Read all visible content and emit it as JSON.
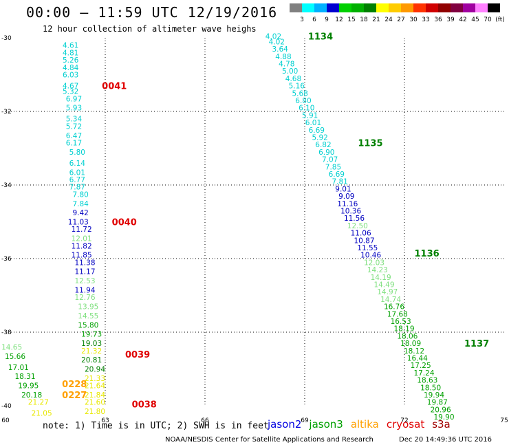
{
  "title": "00:00 – 11:59 UTC 12/19/2016",
  "subtitle": "12 hour collection of altimeter wave heighs",
  "legend": {
    "labels": [
      "3",
      "6",
      "9",
      "12",
      "15",
      "18",
      "21",
      "24",
      "27",
      "30",
      "33",
      "36",
      "39",
      "42",
      "45",
      "70",
      "(ft)"
    ],
    "colors": [
      "#808080",
      "#00ffff",
      "#00b0ff",
      "#0000d0",
      "#00d000",
      "#00b000",
      "#008000",
      "#ffff00",
      "#ffcc00",
      "#ff9900",
      "#ff3300",
      "#d00000",
      "#900000",
      "#800040",
      "#a000a0",
      "#ff80ff",
      "#000000"
    ]
  },
  "colors": {
    "teal": "#00d0d0",
    "navy": "#0000c0",
    "light_green": "#80e080",
    "green": "#00a000",
    "dark_green": "#008000",
    "yellow": "#e8e800",
    "orange": "#ffa000",
    "red": "#e00000"
  },
  "chart_data": {
    "type": "scatter",
    "title": "00:00 – 11:59 UTC 12/19/2016",
    "subtitle": "12 hour collection of altimeter wave heighs",
    "x_ticks": [
      "60",
      "63",
      "66",
      "69",
      "72",
      "75"
    ],
    "y_ticks": [
      "-30",
      "-32",
      "-34",
      "-36",
      "-38",
      "-40"
    ],
    "xlim": [
      60,
      75
    ],
    "ylim": [
      -40,
      -30
    ],
    "grid": true,
    "tracks": [
      {
        "label": "0041",
        "x": 62.9,
        "y": -31.3,
        "color": "#e00000"
      },
      {
        "label": "0040",
        "x": 63.2,
        "y": -35.0,
        "color": "#e00000"
      },
      {
        "label": "0039",
        "x": 63.6,
        "y": -38.6,
        "color": "#e00000"
      },
      {
        "label": "0038",
        "x": 63.8,
        "y": -39.95,
        "color": "#e00000"
      },
      {
        "label": "0228",
        "x": 61.7,
        "y": -39.4,
        "color": "#ffa000"
      },
      {
        "label": "0227",
        "x": 61.7,
        "y": -39.7,
        "color": "#ffa000"
      },
      {
        "label": "1134",
        "x": 69.1,
        "y": -29.95,
        "color": "#008000"
      },
      {
        "label": "1135",
        "x": 70.6,
        "y": -32.85,
        "color": "#008000"
      },
      {
        "label": "1136",
        "x": 72.3,
        "y": -35.85,
        "color": "#008000"
      },
      {
        "label": "1137",
        "x": 73.8,
        "y": -38.3,
        "color": "#008000"
      }
    ],
    "series": [
      {
        "name": "west-pass",
        "points": [
          {
            "v": "4.61",
            "x": 62.2,
            "y": -30.2,
            "c": "teal"
          },
          {
            "v": "4.81",
            "x": 62.2,
            "y": -30.4,
            "c": "teal"
          },
          {
            "v": "5.26",
            "x": 62.2,
            "y": -30.6,
            "c": "teal"
          },
          {
            "v": "4.84",
            "x": 62.2,
            "y": -30.8,
            "c": "teal"
          },
          {
            "v": "6.03",
            "x": 62.2,
            "y": -31.0,
            "c": "teal"
          },
          {
            "v": "4.67",
            "x": 62.2,
            "y": -31.3,
            "c": "teal"
          },
          {
            "v": "5.32",
            "x": 62.2,
            "y": -31.45,
            "c": "teal"
          },
          {
            "v": "6.97",
            "x": 62.3,
            "y": -31.65,
            "c": "teal"
          },
          {
            "v": "5.93",
            "x": 62.3,
            "y": -31.9,
            "c": "teal"
          },
          {
            "v": "5.34",
            "x": 62.3,
            "y": -32.2,
            "c": "teal"
          },
          {
            "v": "5.72",
            "x": 62.3,
            "y": -32.4,
            "c": "teal"
          },
          {
            "v": "6.47",
            "x": 62.3,
            "y": -32.65,
            "c": "teal"
          },
          {
            "v": "6.17",
            "x": 62.3,
            "y": -32.85,
            "c": "teal"
          },
          {
            "v": "5.80",
            "x": 62.4,
            "y": -33.1,
            "c": "teal"
          },
          {
            "v": "6.14",
            "x": 62.4,
            "y": -33.4,
            "c": "teal"
          },
          {
            "v": "6.01",
            "x": 62.4,
            "y": -33.65,
            "c": "teal"
          },
          {
            "v": "6.77",
            "x": 62.4,
            "y": -33.85,
            "c": "teal"
          },
          {
            "v": "7.87",
            "x": 62.4,
            "y": -34.05,
            "c": "teal"
          },
          {
            "v": "7.80",
            "x": 62.5,
            "y": -34.25,
            "c": "teal"
          },
          {
            "v": "7.84",
            "x": 62.5,
            "y": -34.5,
            "c": "teal"
          },
          {
            "v": "9.42",
            "x": 62.5,
            "y": -34.75,
            "c": "navy"
          },
          {
            "v": "11.03",
            "x": 62.5,
            "y": -35.0,
            "c": "navy"
          },
          {
            "v": "11.72",
            "x": 62.6,
            "y": -35.2,
            "c": "navy"
          },
          {
            "v": "12.01",
            "x": 62.6,
            "y": -35.45,
            "c": "light_green"
          },
          {
            "v": "11.82",
            "x": 62.6,
            "y": -35.65,
            "c": "navy"
          },
          {
            "v": "11.85",
            "x": 62.6,
            "y": -35.9,
            "c": "navy"
          },
          {
            "v": "11.38",
            "x": 62.7,
            "y": -36.1,
            "c": "navy"
          },
          {
            "v": "11.17",
            "x": 62.7,
            "y": -36.35,
            "c": "navy"
          },
          {
            "v": "12.53",
            "x": 62.7,
            "y": -36.6,
            "c": "light_green"
          },
          {
            "v": "11.94",
            "x": 62.7,
            "y": -36.85,
            "c": "navy"
          },
          {
            "v": "12.76",
            "x": 62.7,
            "y": -37.05,
            "c": "light_green"
          },
          {
            "v": "13.95",
            "x": 62.8,
            "y": -37.3,
            "c": "light_green"
          },
          {
            "v": "14.55",
            "x": 62.8,
            "y": -37.55,
            "c": "light_green"
          },
          {
            "v": "15.80",
            "x": 62.8,
            "y": -37.8,
            "c": "green"
          },
          {
            "v": "19.73",
            "x": 62.9,
            "y": -38.05,
            "c": "green"
          },
          {
            "v": "19.03",
            "x": 62.9,
            "y": -38.3,
            "c": "dark_green"
          },
          {
            "v": "21.32",
            "x": 62.9,
            "y": -38.5,
            "c": "yellow"
          },
          {
            "v": "20.81",
            "x": 62.9,
            "y": -38.75,
            "c": "dark_green"
          },
          {
            "v": "20.94",
            "x": 63.0,
            "y": -39.0,
            "c": "dark_green"
          },
          {
            "v": "21.33",
            "x": 63.0,
            "y": -39.25,
            "c": "yellow"
          },
          {
            "v": "21.64",
            "x": 63.0,
            "y": -39.45,
            "c": "yellow"
          },
          {
            "v": "21.84",
            "x": 63.0,
            "y": -39.7,
            "c": "yellow"
          },
          {
            "v": "21.60",
            "x": 63.0,
            "y": -39.9,
            "c": "yellow"
          },
          {
            "v": "21.80",
            "x": 63.0,
            "y": -40.15,
            "c": "yellow"
          }
        ]
      },
      {
        "name": "southwest-pass",
        "points": [
          {
            "v": "14.65",
            "x": 60.5,
            "y": -38.4,
            "c": "light_green"
          },
          {
            "v": "15.66",
            "x": 60.6,
            "y": -38.65,
            "c": "green"
          },
          {
            "v": "17.01",
            "x": 60.7,
            "y": -38.95,
            "c": "green"
          },
          {
            "v": "18.31",
            "x": 60.9,
            "y": -39.2,
            "c": "green"
          },
          {
            "v": "19.95",
            "x": 61.0,
            "y": -39.45,
            "c": "green"
          },
          {
            "v": "20.18",
            "x": 61.1,
            "y": -39.7,
            "c": "green"
          },
          {
            "v": "21.27",
            "x": 61.3,
            "y": -39.9,
            "c": "yellow"
          },
          {
            "v": "21.05",
            "x": 61.4,
            "y": -40.2,
            "c": "yellow"
          }
        ]
      },
      {
        "name": "east-pass",
        "points": [
          {
            "v": "4.02",
            "x": 68.3,
            "y": -29.95,
            "c": "teal"
          },
          {
            "v": "4.02",
            "x": 68.4,
            "y": -30.1,
            "c": "teal"
          },
          {
            "v": "3.64",
            "x": 68.5,
            "y": -30.3,
            "c": "teal"
          },
          {
            "v": "4.88",
            "x": 68.6,
            "y": -30.5,
            "c": "teal"
          },
          {
            "v": "4.78",
            "x": 68.7,
            "y": -30.7,
            "c": "teal"
          },
          {
            "v": "5.00",
            "x": 68.8,
            "y": -30.9,
            "c": "teal"
          },
          {
            "v": "4.68",
            "x": 68.9,
            "y": -31.1,
            "c": "teal"
          },
          {
            "v": "5.16",
            "x": 69.0,
            "y": -31.3,
            "c": "teal"
          },
          {
            "v": "5.68",
            "x": 69.1,
            "y": -31.5,
            "c": "teal"
          },
          {
            "v": "6.80",
            "x": 69.2,
            "y": -31.7,
            "c": "teal"
          },
          {
            "v": "6.10",
            "x": 69.3,
            "y": -31.9,
            "c": "teal"
          },
          {
            "v": "5.91",
            "x": 69.4,
            "y": -32.1,
            "c": "teal"
          },
          {
            "v": "6.01",
            "x": 69.5,
            "y": -32.3,
            "c": "teal"
          },
          {
            "v": "6.69",
            "x": 69.6,
            "y": -32.5,
            "c": "teal"
          },
          {
            "v": "5.92",
            "x": 69.7,
            "y": -32.7,
            "c": "teal"
          },
          {
            "v": "6.82",
            "x": 69.8,
            "y": -32.9,
            "c": "teal"
          },
          {
            "v": "6.90",
            "x": 69.9,
            "y": -33.1,
            "c": "teal"
          },
          {
            "v": "7.07",
            "x": 70.0,
            "y": -33.3,
            "c": "teal"
          },
          {
            "v": "7.85",
            "x": 70.1,
            "y": -33.5,
            "c": "teal"
          },
          {
            "v": "6.69",
            "x": 70.2,
            "y": -33.7,
            "c": "teal"
          },
          {
            "v": "7.81",
            "x": 70.3,
            "y": -33.9,
            "c": "teal"
          },
          {
            "v": "9.01",
            "x": 70.4,
            "y": -34.1,
            "c": "navy"
          },
          {
            "v": "9.09",
            "x": 70.5,
            "y": -34.3,
            "c": "navy"
          },
          {
            "v": "11.16",
            "x": 70.6,
            "y": -34.5,
            "c": "navy"
          },
          {
            "v": "10.36",
            "x": 70.7,
            "y": -34.7,
            "c": "navy"
          },
          {
            "v": "11.56",
            "x": 70.8,
            "y": -34.9,
            "c": "navy"
          },
          {
            "v": "12.50",
            "x": 70.9,
            "y": -35.1,
            "c": "light_green"
          },
          {
            "v": "11.06",
            "x": 71.0,
            "y": -35.3,
            "c": "navy"
          },
          {
            "v": "10.87",
            "x": 71.1,
            "y": -35.5,
            "c": "navy"
          },
          {
            "v": "11.55",
            "x": 71.2,
            "y": -35.7,
            "c": "navy"
          },
          {
            "v": "10.46",
            "x": 71.3,
            "y": -35.9,
            "c": "navy"
          },
          {
            "v": "12.03",
            "x": 71.4,
            "y": -36.1,
            "c": "light_green"
          },
          {
            "v": "14.23",
            "x": 71.5,
            "y": -36.3,
            "c": "light_green"
          },
          {
            "v": "14.19",
            "x": 71.6,
            "y": -36.5,
            "c": "light_green"
          },
          {
            "v": "14.49",
            "x": 71.7,
            "y": -36.7,
            "c": "light_green"
          },
          {
            "v": "14.97",
            "x": 71.8,
            "y": -36.9,
            "c": "light_green"
          },
          {
            "v": "14.74",
            "x": 71.9,
            "y": -37.1,
            "c": "light_green"
          },
          {
            "v": "16.76",
            "x": 72.0,
            "y": -37.3,
            "c": "green"
          },
          {
            "v": "17.68",
            "x": 72.1,
            "y": -37.5,
            "c": "green"
          },
          {
            "v": "16.53",
            "x": 72.2,
            "y": -37.7,
            "c": "green"
          },
          {
            "v": "18.19",
            "x": 72.3,
            "y": -37.9,
            "c": "green"
          },
          {
            "v": "18.06",
            "x": 72.4,
            "y": -38.1,
            "c": "green"
          },
          {
            "v": "18.09",
            "x": 72.5,
            "y": -38.3,
            "c": "green"
          },
          {
            "v": "18.12",
            "x": 72.6,
            "y": -38.5,
            "c": "green"
          },
          {
            "v": "16.44",
            "x": 72.7,
            "y": -38.7,
            "c": "green"
          },
          {
            "v": "17.25",
            "x": 72.8,
            "y": -38.9,
            "c": "green"
          },
          {
            "v": "17.24",
            "x": 72.9,
            "y": -39.1,
            "c": "green"
          },
          {
            "v": "18.63",
            "x": 73.0,
            "y": -39.3,
            "c": "green"
          },
          {
            "v": "18.50",
            "x": 73.1,
            "y": -39.5,
            "c": "green"
          },
          {
            "v": "19.94",
            "x": 73.2,
            "y": -39.7,
            "c": "green"
          },
          {
            "v": "19.87",
            "x": 73.3,
            "y": -39.9,
            "c": "green"
          },
          {
            "v": "20.96",
            "x": 73.4,
            "y": -40.1,
            "c": "green"
          },
          {
            "v": "19.90",
            "x": 73.5,
            "y": -40.3,
            "c": "green"
          }
        ]
      }
    ]
  },
  "note": "note: 1) Time is in UTC; 2) SWH is in feet",
  "satellites": [
    {
      "name": "jason2",
      "color": "#0000e0"
    },
    {
      "name": "jason3",
      "color": "#00a000"
    },
    {
      "name": "altika",
      "color": "#ffa000"
    },
    {
      "name": "cryosat",
      "color": "#e00000"
    },
    {
      "name": "s3a",
      "color": "#a00000"
    }
  ],
  "credit": "NOAA/NESDIS Center for Satellite Applications and Research",
  "stamp": "Dec 20 14:49:36 UTC 2016"
}
